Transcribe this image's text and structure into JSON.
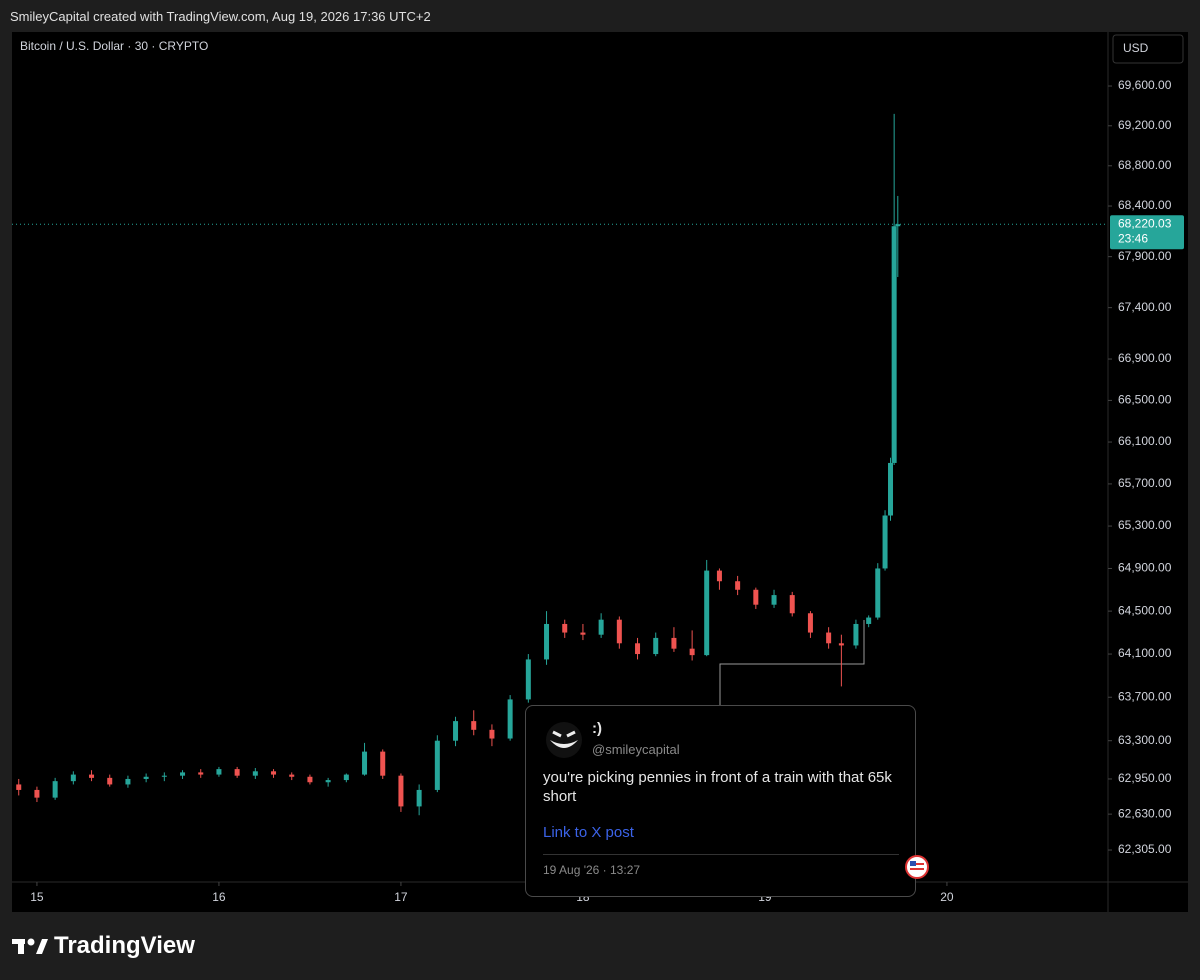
{
  "header": "SmileyCapital created with TradingView.com, Aug 19, 2026 17:36 UTC+2",
  "chart_data": {
    "type": "candlestick",
    "title": "Bitcoin / U.S. Dollar · 30 · CRYPTO",
    "currency": "USD",
    "log_scale": true,
    "up_color": "#26a69a",
    "down_color": "#ef5350",
    "xlim": [
      14.863,
      20.885
    ],
    "xticks": [
      15,
      16,
      17,
      18,
      19,
      20
    ],
    "ylim": [
      62017,
      70147
    ],
    "yticks": [
      {
        "value": 62305,
        "label": "62,305.00"
      },
      {
        "value": 62630,
        "label": "62,630.00"
      },
      {
        "value": 62950,
        "label": "62,950.00"
      },
      {
        "value": 63300,
        "label": "63,300.00"
      },
      {
        "value": 63700,
        "label": "63,700.00"
      },
      {
        "value": 64100,
        "label": "64,100.00"
      },
      {
        "value": 64500,
        "label": "64,500.00"
      },
      {
        "value": 64900,
        "label": "64,900.00"
      },
      {
        "value": 65300,
        "label": "65,300.00"
      },
      {
        "value": 65700,
        "label": "65,700.00"
      },
      {
        "value": 66100,
        "label": "66,100.00"
      },
      {
        "value": 66500,
        "label": "66,500.00"
      },
      {
        "value": 66900,
        "label": "66,900.00"
      },
      {
        "value": 67400,
        "label": "67,400.00"
      },
      {
        "value": 67900,
        "label": "67,900.00"
      },
      {
        "value": 68400,
        "label": "68,400.00"
      },
      {
        "value": 68800,
        "label": "68,800.00"
      },
      {
        "value": 69200,
        "label": "69,200.00"
      },
      {
        "value": 69600,
        "label": "69,600.00"
      }
    ],
    "last_price": {
      "value": 68220.03,
      "label": "68,220.03"
    },
    "countdown": "23:46",
    "x": [
      14.9,
      15.0,
      15.1,
      15.2,
      15.3,
      15.4,
      15.5,
      15.6,
      15.7,
      15.8,
      15.9,
      16.0,
      16.1,
      16.2,
      16.3,
      16.4,
      16.5,
      16.6,
      16.7,
      16.8,
      16.9,
      17.0,
      17.1,
      17.2,
      17.3,
      17.4,
      17.5,
      17.6,
      17.7,
      17.8,
      17.9,
      18.0,
      18.1,
      18.2,
      18.3,
      18.4,
      18.5,
      18.6,
      18.68,
      18.75,
      18.85,
      18.95,
      19.05,
      19.15,
      19.25,
      19.35,
      19.42,
      19.5,
      19.57,
      19.62,
      19.66,
      19.69,
      19.71,
      19.73
    ],
    "open": [
      62900,
      62850,
      62780,
      62930,
      62990,
      62960,
      62900,
      62950,
      62970,
      62980,
      63010,
      62990,
      63040,
      62980,
      63020,
      62990,
      62970,
      62920,
      62940,
      62990,
      63200,
      62980,
      62700,
      62850,
      63300,
      63480,
      63400,
      63320,
      63680,
      64050,
      64380,
      64300,
      64280,
      64420,
      64200,
      64100,
      64250,
      64150,
      64090,
      64880,
      64780,
      64700,
      64560,
      64650,
      64480,
      64300,
      64200,
      64180,
      64380,
      64440,
      64900,
      65400,
      65900,
      68200
    ],
    "high": [
      62950,
      62880,
      62960,
      63020,
      63030,
      62990,
      62980,
      63000,
      63010,
      63030,
      63040,
      63060,
      63060,
      63050,
      63040,
      63010,
      62990,
      62960,
      63000,
      63280,
      63220,
      63000,
      62900,
      63350,
      63520,
      63580,
      63450,
      63720,
      64100,
      64500,
      64420,
      64380,
      64480,
      64450,
      64250,
      64300,
      64350,
      64320,
      64980,
      64900,
      64830,
      64720,
      64700,
      64680,
      64500,
      64350,
      64280,
      64420,
      64460,
      64950,
      65450,
      65950,
      69320,
      68500
    ],
    "low": [
      62800,
      62740,
      62760,
      62900,
      62930,
      62880,
      62870,
      62920,
      62930,
      62950,
      62960,
      62970,
      62960,
      62950,
      62960,
      62940,
      62900,
      62880,
      62920,
      62980,
      62950,
      62650,
      62620,
      62830,
      63250,
      63350,
      63250,
      63300,
      63650,
      64000,
      64250,
      64230,
      64250,
      64150,
      64050,
      64080,
      64120,
      64040,
      64080,
      64700,
      64650,
      64520,
      64530,
      64450,
      64250,
      64150,
      63800,
      64150,
      64350,
      64420,
      64880,
      65350,
      65880,
      67700
    ],
    "close": [
      62850,
      62780,
      62930,
      62990,
      62960,
      62900,
      62950,
      62970,
      62980,
      63010,
      62990,
      63040,
      62980,
      63020,
      62990,
      62970,
      62920,
      62940,
      62990,
      63200,
      62980,
      62700,
      62850,
      63300,
      63480,
      63400,
      63320,
      63680,
      64050,
      64380,
      64300,
      64280,
      64420,
      64200,
      64100,
      64250,
      64150,
      64090,
      64880,
      64780,
      64700,
      64560,
      64650,
      64480,
      64300,
      64200,
      64180,
      64380,
      64440,
      64900,
      65400,
      65900,
      68200,
      68220
    ]
  },
  "post": {
    "name": ":)",
    "handle": "@smileycapital",
    "text": "you're picking pennies in front of a train with that 65k short",
    "link": "Link to X post",
    "date": "19 Aug '26 · 13:27"
  },
  "footer": {
    "brand": "TradingView"
  }
}
